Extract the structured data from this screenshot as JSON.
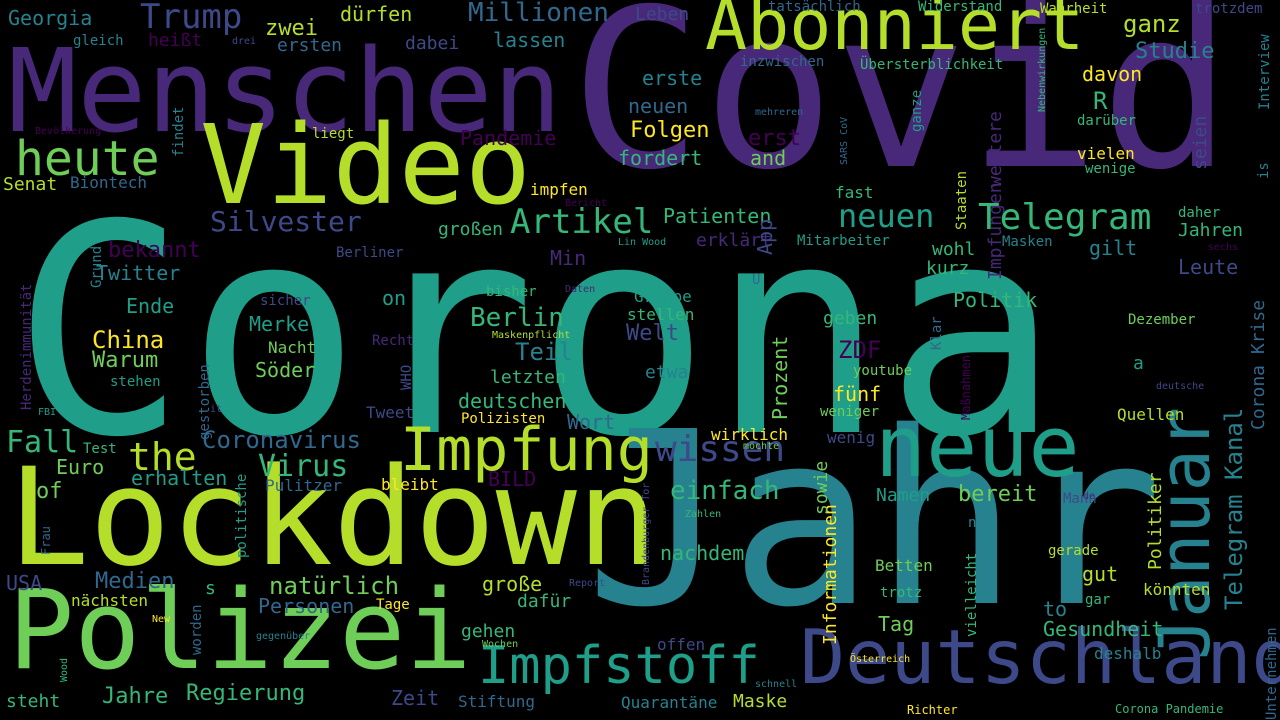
{
  "colors": {
    "background": "#000000",
    "palette": [
      "#440154",
      "#482878",
      "#3e4989",
      "#31688e",
      "#26828e",
      "#1f9e89",
      "#35b779",
      "#6ece58",
      "#b5de2b",
      "#fde725"
    ]
  },
  "words": [
    "Corona",
    "Covid",
    "Jahr",
    "Lockdown",
    "Menschen",
    "Video",
    "Polizei",
    "neue",
    "Abonniert",
    "Januar",
    "Deutschland",
    "Impfung",
    "heute",
    "Impfstoff",
    "Telegram",
    "Artikel",
    "neuen",
    "Telegram Kanal",
    "Trump",
    "Silvester",
    "wissen",
    "Millionen",
    "Corona Krise",
    "Berlin",
    "einfach",
    "Coronavirus",
    "Virus",
    "the",
    "Fall",
    "Georgia",
    "zwei",
    "dürfen",
    "Leben",
    "tatsächlich",
    "Widerstand",
    "Wahrheit",
    "trotzdem",
    "gleich",
    "heißt",
    "ersten",
    "dabei",
    "lassen",
    "Studie",
    "Interview",
    "ganz",
    "davon",
    "R",
    "Übersterblichkeit",
    "inzwischen",
    "erste",
    "neuen",
    "erst",
    "Folgen",
    "fordert",
    "and",
    "Pandemie",
    "liegt",
    "findet",
    "Bevölkerung",
    "Biontech",
    "Senat",
    "impfen",
    "fast",
    "Staaten",
    "daher",
    "vielen",
    "wenige",
    "seien",
    "darüber",
    "weitere",
    "Impfungen",
    "Nebenwirkungen",
    "SARS CoV",
    "mehreren",
    "ganze",
    "is",
    "Patienten",
    "großen",
    "bekannt",
    "Twitter",
    "Berliner",
    "Min",
    "erklärt",
    "Mitarbeiter",
    "Masken",
    "wohl",
    "gilt",
    "Jahren",
    "Leute",
    "kurz",
    "Grund",
    "Herdenimmunität",
    "Ende",
    "China",
    "Warum",
    "stehen",
    "Merkel",
    "Nacht",
    "Söder",
    "sicher",
    "on",
    "bisher",
    "Recht",
    "Maskenpflicht",
    "Gruppe",
    "stellen",
    "Welt",
    "Teil",
    "letzten",
    "etwa",
    "Prozent",
    "geben",
    "ZDF",
    "youtube",
    "fünf",
    "weniger",
    "Politik",
    "a",
    "Dezember",
    "Quellen",
    "deutsche",
    "Klar",
    "Maßnahmen",
    "Politiker",
    "Tweet",
    "deutschen",
    "Polizisten",
    "Wort",
    "wirklich",
    "wenig",
    "Informationen",
    "sowie",
    "Namen",
    "bereit",
    "Mann",
    "nie",
    "vielleicht",
    "Unternehmen",
    "gerade",
    "Betten",
    "trotz",
    "gut",
    "könnten",
    "gar",
    "to",
    "Gesundheit",
    "Tag",
    "deshalb",
    "Österreich",
    "Corona Pandemie",
    "Richter",
    "offen",
    "Quarantäne",
    "Maske",
    "Stiftung",
    "Zeit",
    "schnell",
    "Wochen",
    "gehen",
    "Tage",
    "nachdem",
    "große",
    "dafür",
    "natürlich",
    "Personen",
    "Jahre",
    "Regierung",
    "steht",
    "nächsten",
    "Medien",
    "USA",
    "Frau",
    "politische",
    "worden",
    "s",
    "Pulitzer",
    "bleibt",
    "BILD",
    "erhalten",
    "Euro",
    "of",
    "Test",
    "FBI",
    "it",
    "WHO",
    "gestorben",
    "Report",
    "Zahlen",
    "Brandenburger Tor",
    "möchte",
    "Daten",
    "Lin Wood",
    "sechs",
    "Bericht",
    "drei",
    "App",
    "U",
    "New",
    "gegenüber",
    "Wood",
    "de"
  ]
}
